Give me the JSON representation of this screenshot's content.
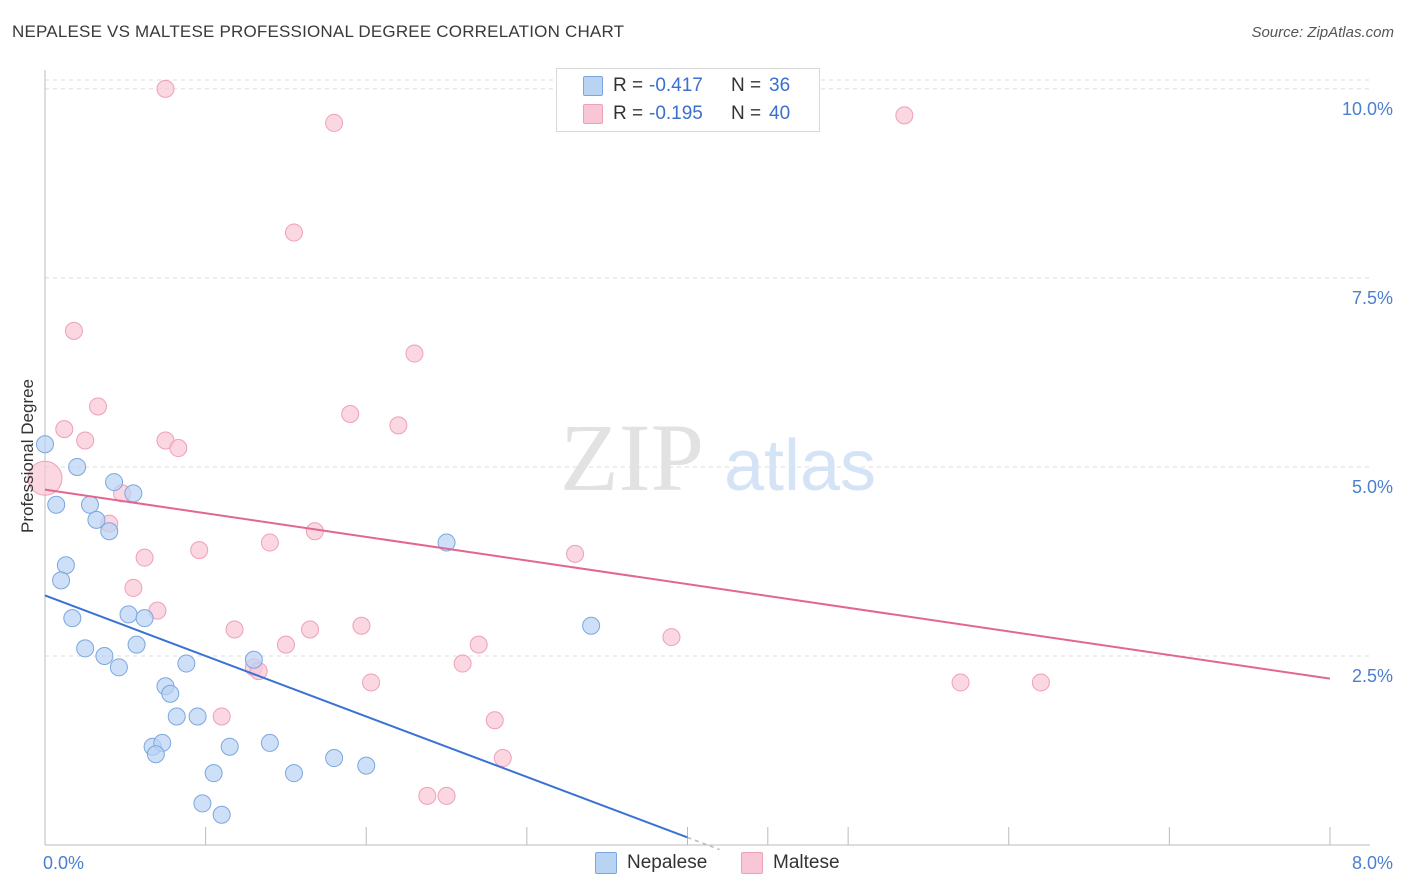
{
  "header": {
    "title": "NEPALESE VS MALTESE PROFESSIONAL DEGREE CORRELATION CHART",
    "source": "Source: ZipAtlas.com"
  },
  "watermark": {
    "zip": "ZIP",
    "atlas": "atlas"
  },
  "stats": {
    "nepalese": {
      "r_label": "R =",
      "r_value": "-0.417",
      "n_label": "N =",
      "n_value": "36"
    },
    "maltese": {
      "r_label": "R =",
      "r_value": "-0.195",
      "n_label": "N =",
      "n_value": "40"
    }
  },
  "legend": {
    "nepalese": "Nepalese",
    "maltese": "Maltese"
  },
  "colors": {
    "nepalese_fill": "#b9d3f3",
    "nepalese_stroke": "#7ba6e0",
    "nepalese_line": "#3a72d3",
    "maltese_fill": "#f9c6d6",
    "maltese_stroke": "#eea0b8",
    "maltese_line": "#e3668f",
    "tick_label": "#4a7fd1",
    "grid": "#dcdcdc"
  },
  "chart_data": {
    "type": "scatter",
    "title": "NEPALESE VS MALTESE PROFESSIONAL DEGREE CORRELATION CHART",
    "xlabel": "",
    "ylabel": "Professional Degree",
    "xlim": [
      0,
      8
    ],
    "ylim": [
      0,
      10.25
    ],
    "x_tick_labels": [
      "0.0%",
      "8.0%"
    ],
    "y_ticks": [
      2.5,
      5.0,
      7.5,
      10.0
    ],
    "y_tick_labels": [
      "2.5%",
      "5.0%",
      "7.5%",
      "10.0%"
    ],
    "grid": true,
    "series": [
      {
        "name": "Nepalese",
        "points": [
          [
            0.0,
            5.3
          ],
          [
            0.07,
            4.5
          ],
          [
            0.2,
            5.0
          ],
          [
            0.28,
            4.5
          ],
          [
            0.32,
            4.3
          ],
          [
            0.4,
            4.15
          ],
          [
            0.43,
            4.8
          ],
          [
            0.55,
            4.65
          ],
          [
            0.13,
            3.7
          ],
          [
            0.1,
            3.5
          ],
          [
            0.17,
            3.0
          ],
          [
            0.25,
            2.6
          ],
          [
            0.37,
            2.5
          ],
          [
            0.46,
            2.35
          ],
          [
            0.52,
            3.05
          ],
          [
            0.57,
            2.65
          ],
          [
            0.62,
            3.0
          ],
          [
            0.75,
            2.1
          ],
          [
            0.78,
            2.0
          ],
          [
            0.88,
            2.4
          ],
          [
            0.82,
            1.7
          ],
          [
            0.95,
            1.7
          ],
          [
            0.67,
            1.3
          ],
          [
            0.73,
            1.35
          ],
          [
            0.69,
            1.2
          ],
          [
            0.98,
            0.55
          ],
          [
            1.05,
            0.95
          ],
          [
            1.1,
            0.4
          ],
          [
            1.15,
            1.3
          ],
          [
            1.3,
            2.45
          ],
          [
            1.4,
            1.35
          ],
          [
            1.55,
            0.95
          ],
          [
            1.8,
            1.15
          ],
          [
            2.0,
            1.05
          ],
          [
            2.5,
            4.0
          ],
          [
            3.4,
            2.9
          ]
        ],
        "trend": {
          "x": [
            0.0,
            4.0
          ],
          "y": [
            3.3,
            0.1
          ]
        }
      },
      {
        "name": "Maltese",
        "points": [
          [
            0.0,
            4.85
          ],
          [
            0.12,
            5.5
          ],
          [
            0.18,
            6.8
          ],
          [
            0.25,
            5.35
          ],
          [
            0.33,
            5.8
          ],
          [
            0.4,
            4.25
          ],
          [
            0.48,
            4.65
          ],
          [
            0.62,
            3.8
          ],
          [
            0.55,
            3.4
          ],
          [
            0.7,
            3.1
          ],
          [
            0.75,
            5.35
          ],
          [
            0.83,
            5.25
          ],
          [
            0.96,
            3.9
          ],
          [
            1.1,
            1.7
          ],
          [
            1.18,
            2.85
          ],
          [
            1.3,
            2.35
          ],
          [
            1.33,
            2.3
          ],
          [
            1.4,
            4.0
          ],
          [
            1.5,
            2.65
          ],
          [
            1.55,
            8.1
          ],
          [
            1.65,
            2.85
          ],
          [
            1.68,
            4.15
          ],
          [
            1.8,
            9.55
          ],
          [
            1.9,
            5.7
          ],
          [
            1.97,
            2.9
          ],
          [
            2.03,
            2.15
          ],
          [
            2.2,
            5.55
          ],
          [
            2.3,
            6.5
          ],
          [
            2.38,
            0.65
          ],
          [
            2.5,
            0.65
          ],
          [
            2.6,
            2.4
          ],
          [
            2.7,
            2.65
          ],
          [
            2.8,
            1.65
          ],
          [
            2.85,
            1.15
          ],
          [
            3.3,
            3.85
          ],
          [
            3.9,
            2.75
          ],
          [
            5.35,
            9.65
          ],
          [
            5.7,
            2.15
          ],
          [
            6.2,
            2.15
          ],
          [
            0.75,
            10.0
          ]
        ],
        "trend": {
          "x": [
            0.0,
            8.0
          ],
          "y": [
            4.7,
            2.2
          ]
        }
      }
    ]
  }
}
